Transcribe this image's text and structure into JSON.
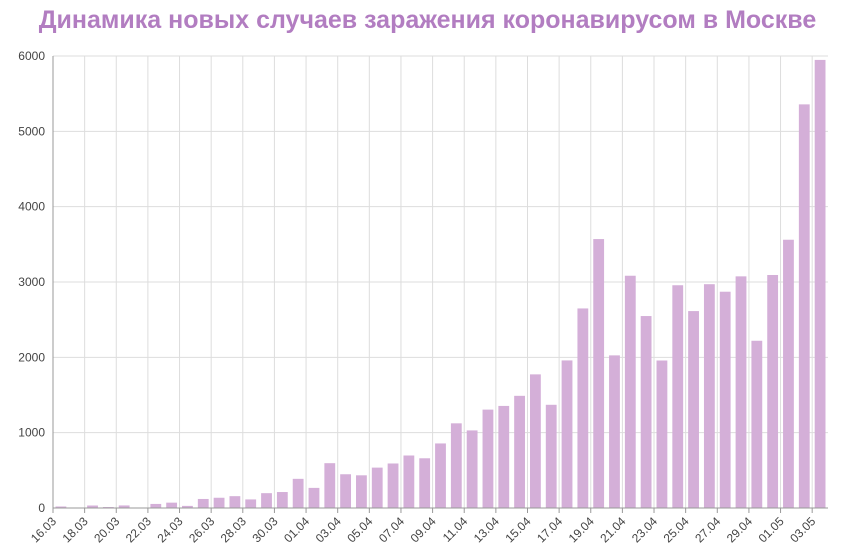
{
  "chart_data": {
    "type": "bar",
    "title": "Динамика новых случаев заражения коронавирусом в Москве",
    "xlabel": "",
    "ylabel": "",
    "ylim": [
      0,
      6000
    ],
    "yticks": [
      0,
      1000,
      2000,
      3000,
      4000,
      5000,
      6000
    ],
    "grid": true,
    "bar_color": "#d4afd8",
    "title_color": "#b27dc1",
    "categories": [
      "16.03",
      "17.03",
      "18.03",
      "19.03",
      "20.03",
      "21.03",
      "22.03",
      "23.03",
      "24.03",
      "25.03",
      "26.03",
      "27.03",
      "28.03",
      "29.03",
      "30.03",
      "31.03",
      "01.04",
      "02.04",
      "03.04",
      "04.04",
      "05.04",
      "06.04",
      "07.04",
      "08.04",
      "09.04",
      "10.04",
      "11.04",
      "12.04",
      "13.04",
      "14.04",
      "15.04",
      "16.04",
      "17.04",
      "18.04",
      "19.04",
      "20.04",
      "21.04",
      "22.04",
      "23.04",
      "24.04",
      "25.04",
      "26.04",
      "27.04",
      "28.04",
      "29.04",
      "30.04",
      "01.05",
      "02.05",
      "03.05"
    ],
    "values": [
      20,
      0,
      33,
      13,
      34,
      6,
      54,
      71,
      28,
      120,
      136,
      157,
      114,
      197,
      212,
      387,
      267,
      595,
      448,
      434,
      536,
      591,
      697,
      660,
      857,
      1124,
      1030,
      1306,
      1355,
      1489,
      1774,
      1370,
      1959,
      2649,
      3570,
      2026,
      3083,
      2548,
      1958,
      2957,
      2614,
      2971,
      2871,
      3075,
      2220,
      3093,
      3561,
      5358,
      5948
    ],
    "label_every": 2
  }
}
